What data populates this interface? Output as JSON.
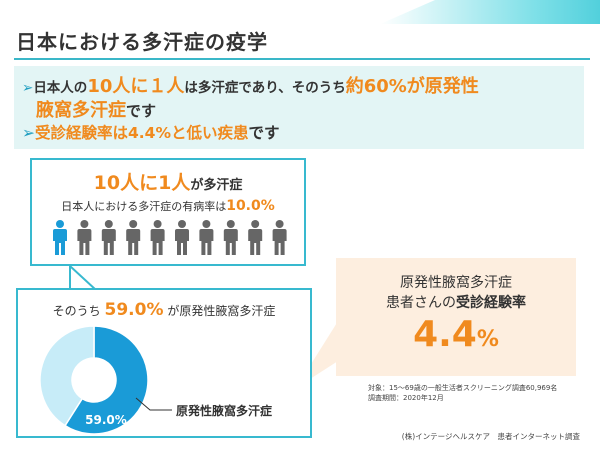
{
  "colors": {
    "accent": "#38b9cf",
    "highlight": "#f08a1e",
    "summary_bg": "#e3f5f5",
    "callout_bg": "#fdeedf",
    "person_highlight": "#1a9bd7",
    "person_gray": "#666666"
  },
  "title": "日本における多汗症の疫学",
  "summary": {
    "arrow": "➢",
    "line1": {
      "a": "日本人の",
      "b": "10人に１人",
      "c": "は多汗症であり、そのうち",
      "d": "約60%が原発性"
    },
    "line2": {
      "a": "腋窩多汗症",
      "b": "です"
    },
    "line3": {
      "a": "受診経験率は4.4%と低い疾患",
      "b": "です"
    }
  },
  "top_panel": {
    "headline_num": "10人に1人",
    "headline_text": "が多汗症",
    "prevalence_label": "日本人における多汗症の有病率は",
    "prevalence_value": "10.0%",
    "people_icon": "person-icon",
    "people_total": 10,
    "people_highlighted": 1
  },
  "bottom_panel": {
    "prefix": "そのうち",
    "value": "59.0%",
    "suffix": "が原発性腋窩多汗症",
    "donut_label": "59.0%",
    "legend_label": "原発性腋窩多汗症"
  },
  "callout": {
    "line1": "原発性腋窩多汗症",
    "line2_a": "患者さんの",
    "line2_b": "受診経験率",
    "value": "4.4",
    "unit": "%"
  },
  "notes": {
    "line1": "対象：15〜69歳の一般生活者スクリーニング調査60,969名",
    "line2": "調査期間：2020年12月"
  },
  "source": "(株)インテージヘルスケア　患者インターネット調査",
  "chart_data": {
    "type": "pie",
    "title": "",
    "categories": [
      "原発性腋窩多汗症",
      ""
    ],
    "values": [
      59.0,
      41.0
    ],
    "colors": [
      "#1a9bd7",
      "#c7ecf8"
    ]
  }
}
